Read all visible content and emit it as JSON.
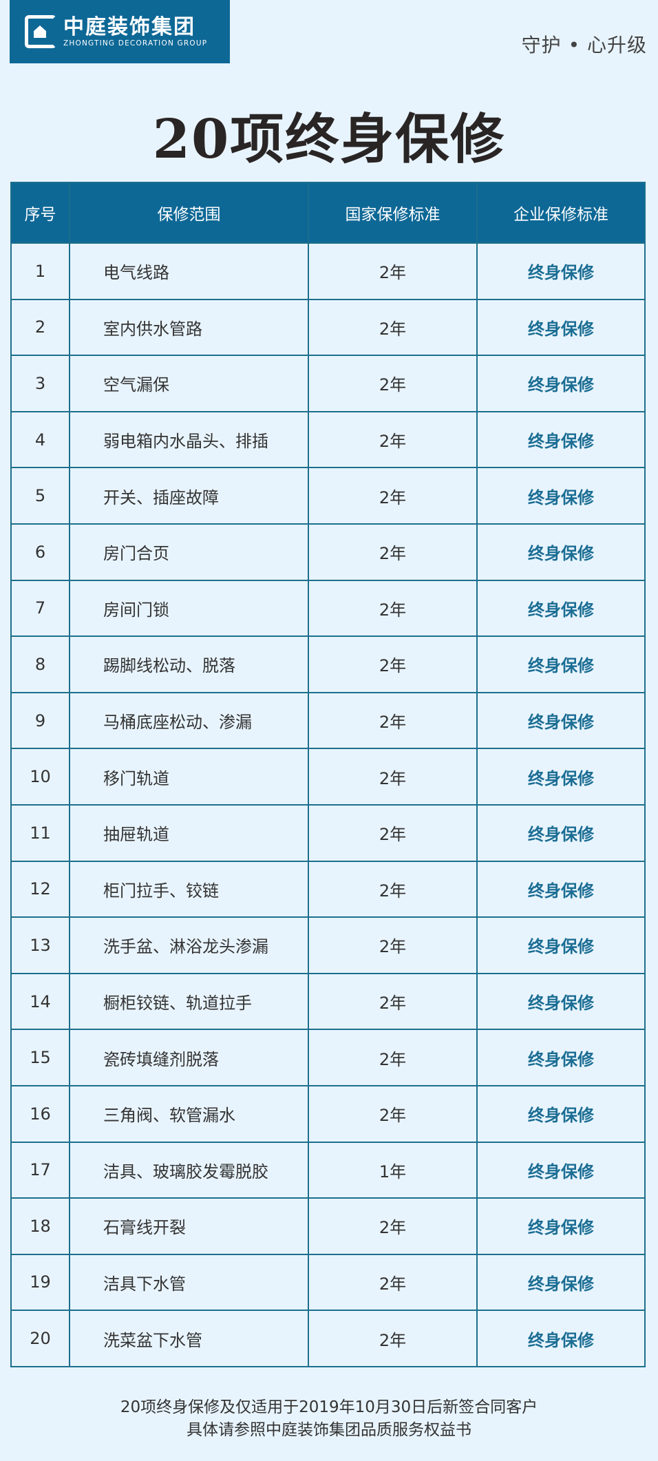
{
  "brand": {
    "name_cn": "中庭装饰集团",
    "name_en": "ZHONGTING DECORATION GROUP",
    "tagline": "守护 • 心升级"
  },
  "title": "20项终身保修",
  "table": {
    "headers": [
      "序号",
      "保修范围",
      "国家保修标准",
      "企业保修标准"
    ],
    "rows": [
      {
        "no": "1",
        "scope": "电气线路",
        "national": "2年",
        "enterprise": "终身保修"
      },
      {
        "no": "2",
        "scope": "室内供水管路",
        "national": "2年",
        "enterprise": "终身保修"
      },
      {
        "no": "3",
        "scope": "空气漏保",
        "national": "2年",
        "enterprise": "终身保修"
      },
      {
        "no": "4",
        "scope": "弱电箱内水晶头、排插",
        "national": "2年",
        "enterprise": "终身保修"
      },
      {
        "no": "5",
        "scope": "开关、插座故障",
        "national": "2年",
        "enterprise": "终身保修"
      },
      {
        "no": "6",
        "scope": "房门合页",
        "national": "2年",
        "enterprise": "终身保修"
      },
      {
        "no": "7",
        "scope": "房间门锁",
        "national": "2年",
        "enterprise": "终身保修"
      },
      {
        "no": "8",
        "scope": "踢脚线松动、脱落",
        "national": "2年",
        "enterprise": "终身保修"
      },
      {
        "no": "9",
        "scope": "马桶底座松动、渗漏",
        "national": "2年",
        "enterprise": "终身保修"
      },
      {
        "no": "10",
        "scope": "移门轨道",
        "national": "2年",
        "enterprise": "终身保修"
      },
      {
        "no": "11",
        "scope": "抽屉轨道",
        "national": "2年",
        "enterprise": "终身保修"
      },
      {
        "no": "12",
        "scope": "柜门拉手、铰链",
        "national": "2年",
        "enterprise": "终身保修"
      },
      {
        "no": "13",
        "scope": "洗手盆、淋浴龙头渗漏",
        "national": "2年",
        "enterprise": "终身保修"
      },
      {
        "no": "14",
        "scope": "橱柜铰链、轨道拉手",
        "national": "2年",
        "enterprise": "终身保修"
      },
      {
        "no": "15",
        "scope": "瓷砖填缝剂脱落",
        "national": "2年",
        "enterprise": "终身保修"
      },
      {
        "no": "16",
        "scope": "三角阀、软管漏水",
        "national": "2年",
        "enterprise": "终身保修"
      },
      {
        "no": "17",
        "scope": "洁具、玻璃胶发霉脱胶",
        "national": "1年",
        "enterprise": "终身保修"
      },
      {
        "no": "18",
        "scope": "石膏线开裂",
        "national": "2年",
        "enterprise": "终身保修"
      },
      {
        "no": "19",
        "scope": "洁具下水管",
        "national": "2年",
        "enterprise": "终身保修"
      },
      {
        "no": "20",
        "scope": "洗菜盆下水管",
        "national": "2年",
        "enterprise": "终身保修"
      }
    ]
  },
  "footer": {
    "line1": "20项终身保修及仅适用于2019年10月30日后新签合同客户",
    "line2": "具体请参照中庭装饰集团品质服务权益书"
  },
  "colors": {
    "header_bg": "#0e6896",
    "page_bg": "#e8f4fd",
    "accent_text": "#1b6d93"
  }
}
